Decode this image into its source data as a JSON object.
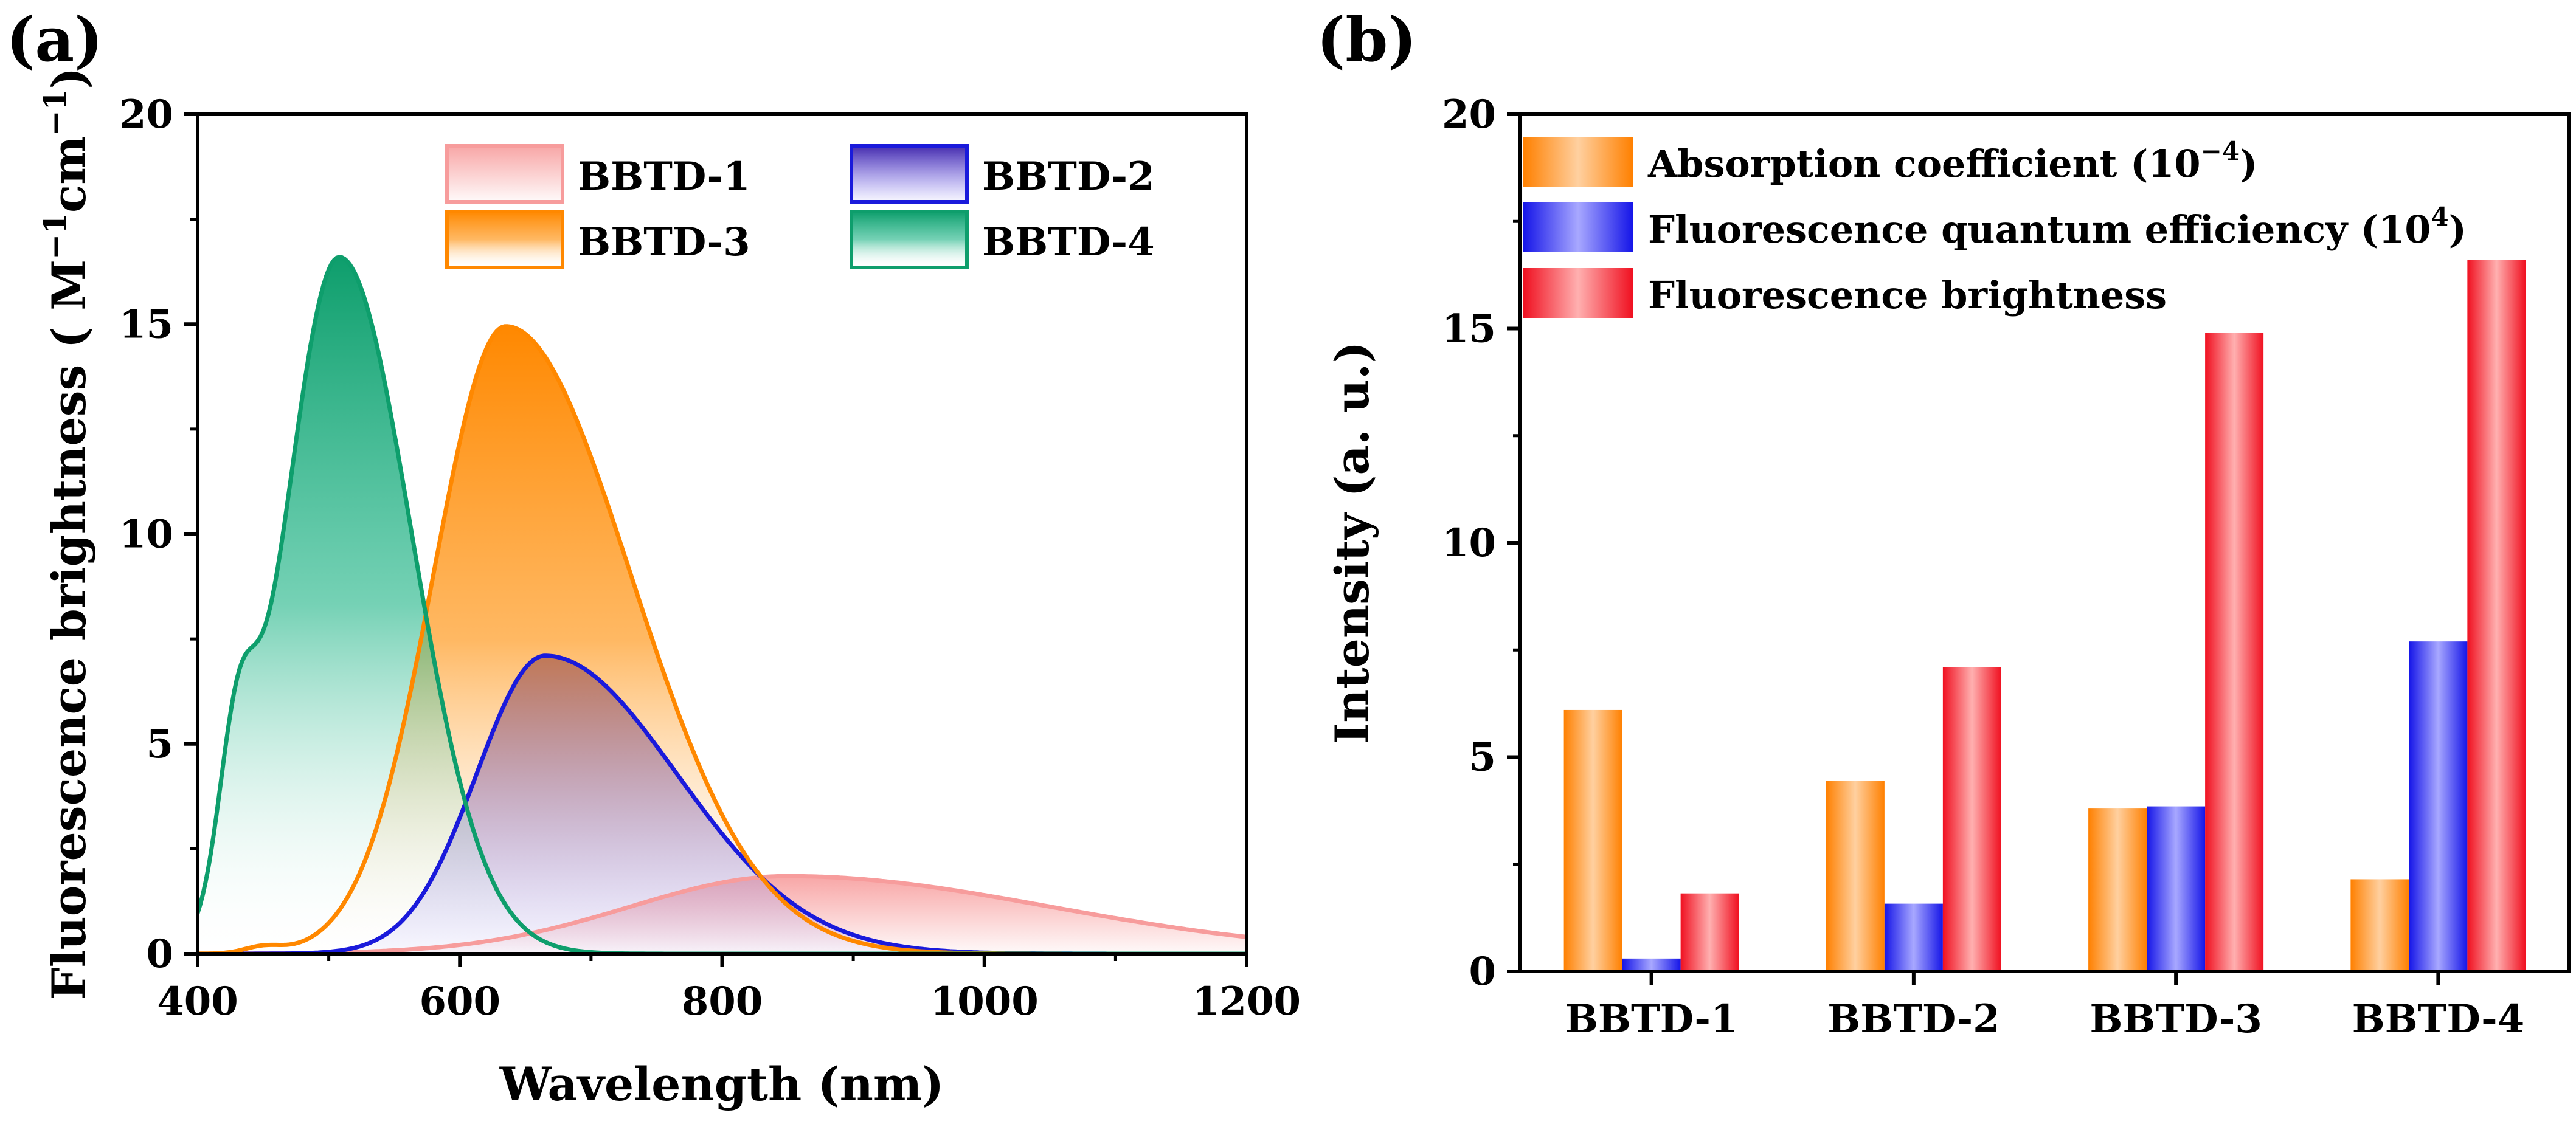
{
  "panels": {
    "a": {
      "label": "(a)"
    },
    "b": {
      "label": "(b)"
    }
  },
  "chart_data": [
    {
      "type": "area",
      "panel": "(a)",
      "xlabel": "Wavelength (nm)",
      "ylabel": "Fluorescence brightness ( M",
      "ylabel_sup1": "−1",
      "ylabel_mid": "cm",
      "ylabel_sup2": "−1",
      "ylabel_end": ")",
      "xlim": [
        400,
        1200
      ],
      "ylim": [
        0,
        20
      ],
      "xticks": [
        400,
        600,
        800,
        1000,
        1200
      ],
      "yticks": [
        0,
        5,
        10,
        15,
        20
      ],
      "legend_position": "top-right",
      "series": [
        {
          "name": "BBTD-1",
          "color": "#f79c9c",
          "peak_x": 850,
          "peak_y": 1.85,
          "sigma_left": 120,
          "sigma_right": 200,
          "shoulder_x": null,
          "shoulder_y": null
        },
        {
          "name": "BBTD-2",
          "color": "#1a1adb",
          "peak_x": 665,
          "peak_y": 7.1,
          "sigma_left": 52,
          "sigma_right": 100,
          "shoulder_x": null,
          "shoulder_y": null
        },
        {
          "name": "BBTD-3",
          "color": "#ff8800",
          "peak_x": 635,
          "peak_y": 14.95,
          "sigma_left": 55,
          "sigma_right": 95,
          "shoulder_x": 450,
          "shoulder_y": 0.15
        },
        {
          "name": "BBTD-4",
          "color": "#0e9e6c",
          "peak_x": 508,
          "peak_y": 16.6,
          "sigma_left": 42,
          "sigma_right": 55,
          "shoulder_x": 430,
          "shoulder_y": 3.6
        }
      ]
    },
    {
      "type": "bar",
      "panel": "(b)",
      "ylabel": "Intensity (a. u.)",
      "ylim": [
        0,
        20
      ],
      "yticks": [
        0,
        5,
        10,
        15,
        20
      ],
      "categories": [
        "BBTD-1",
        "BBTD-2",
        "BBTD-3",
        "BBTD-4"
      ],
      "legend_position": "top-left",
      "series": [
        {
          "name": "Absorption coefficient (10",
          "name_sup": "−4",
          "name_end": ")",
          "color": "#ff8c1a",
          "values": [
            6.1,
            4.45,
            3.8,
            2.15
          ]
        },
        {
          "name": "Fluorescence quantum efficiency (10",
          "name_sup": "4",
          "name_end": ")",
          "color": "#2a2af0",
          "values": [
            0.3,
            1.58,
            3.85,
            7.7
          ]
        },
        {
          "name": "Fluorescence brightness",
          "name_sup": "",
          "name_end": "",
          "color": "#f5222d",
          "values": [
            1.82,
            7.1,
            14.9,
            16.6
          ]
        }
      ]
    }
  ]
}
